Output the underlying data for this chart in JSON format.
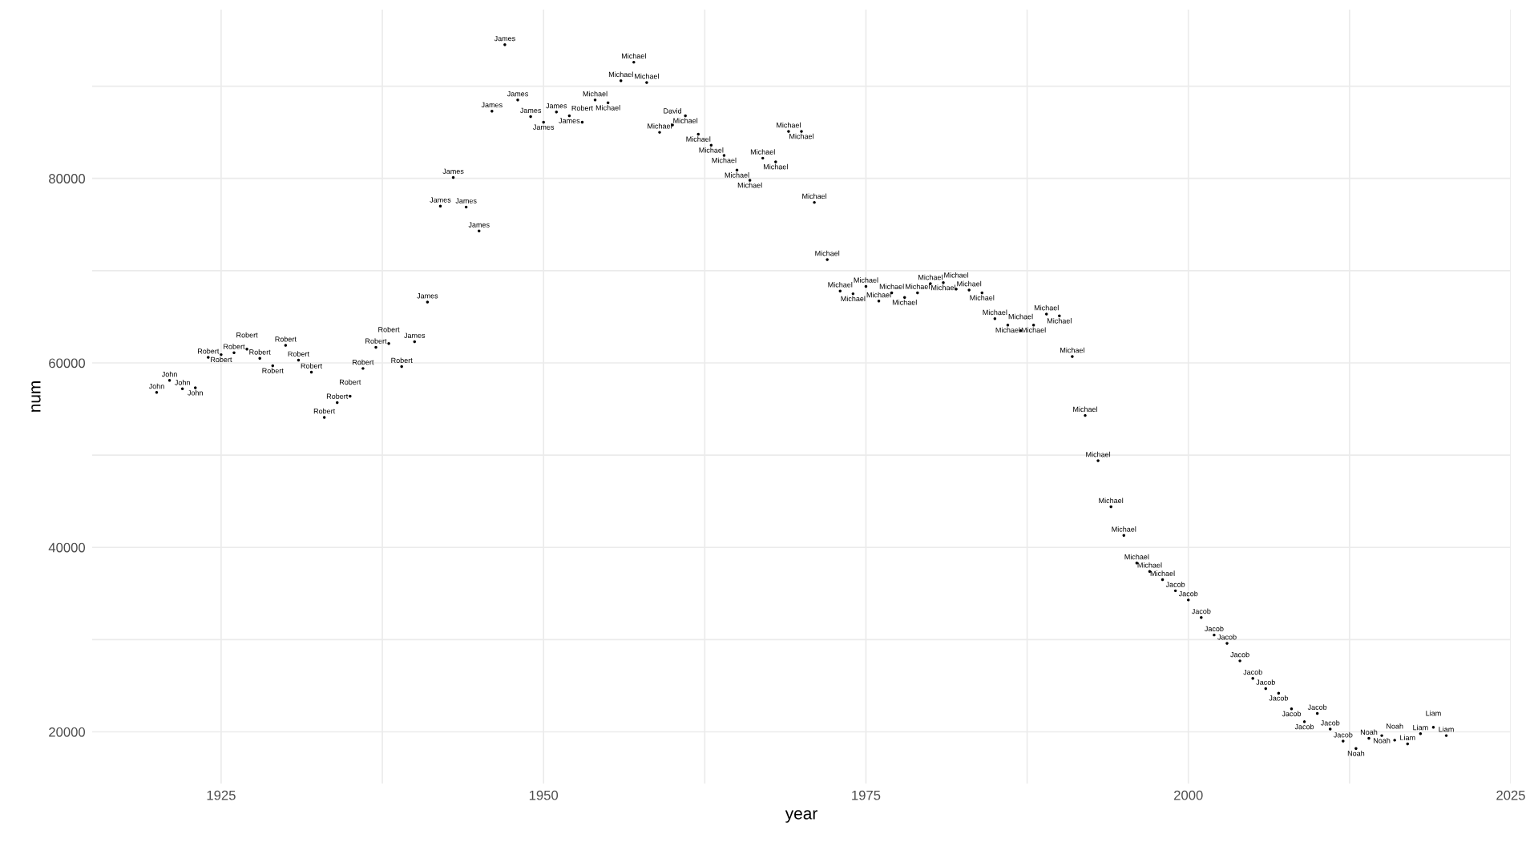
{
  "chart_data": {
    "type": "scatter",
    "xlabel": "year",
    "ylabel": "num",
    "marker": "circle",
    "grid": true,
    "xlim": [
      1915,
      2025
    ],
    "ylim": [
      14400,
      98300
    ],
    "xticks": [
      1925,
      {
        "value": 1937.5,
        "label": null
      },
      1950,
      {
        "value": 1962.5,
        "label": null
      },
      1975,
      {
        "value": 1987.5,
        "label": null
      },
      2000,
      {
        "value": 2012.5,
        "label": null
      },
      2025
    ],
    "yticks": [
      20000,
      {
        "value": 30000,
        "label": null
      },
      40000,
      {
        "value": 50000,
        "label": null
      },
      60000,
      {
        "value": 70000,
        "label": null
      },
      80000,
      {
        "value": 90000,
        "label": null
      }
    ],
    "series": [
      {
        "color": "#000000",
        "x": [
          1920,
          1921,
          1922,
          1923,
          1924,
          1925,
          1926,
          1927,
          1928,
          1929,
          1930,
          1931,
          1932,
          1933,
          1934,
          1935,
          1936,
          1937,
          1938,
          1939,
          1940,
          1941,
          1942,
          1943,
          1944,
          1945,
          1946,
          1947,
          1948,
          1949,
          1950,
          1951,
          1952,
          1953,
          1954,
          1955,
          1956,
          1957,
          1958,
          1959,
          1960,
          1961,
          1962,
          1963,
          1964,
          1965,
          1966,
          1967,
          1968,
          1969,
          1970,
          1971,
          1972,
          1973,
          1974,
          1975,
          1976,
          1977,
          1978,
          1979,
          1980,
          1981,
          1982,
          1983,
          1984,
          1985,
          1986,
          1987,
          1988,
          1989,
          1990,
          1991,
          1992,
          1993,
          1994,
          1995,
          1996,
          1997,
          1998,
          1999,
          2000,
          2001,
          2002,
          2003,
          2004,
          2005,
          2006,
          2007,
          2008,
          2009,
          2010,
          2011,
          2012,
          2013,
          2014,
          2015,
          2016,
          2017,
          2018,
          2019,
          2020
        ],
        "values": [
          56800,
          58100,
          57200,
          57300,
          60600,
          60900,
          61100,
          61500,
          60500,
          59700,
          61900,
          60300,
          59000,
          54100,
          55700,
          56400,
          59400,
          61700,
          62100,
          59600,
          62300,
          66600,
          77000,
          80100,
          76900,
          74300,
          87300,
          94500,
          88500,
          86700,
          86100,
          87200,
          86800,
          86100,
          88500,
          88200,
          90600,
          92600,
          90400,
          85000,
          85800,
          86800,
          84800,
          83600,
          82500,
          80900,
          79800,
          82200,
          81800,
          85100,
          85100,
          77400,
          71200,
          67800,
          67500,
          68300,
          66700,
          67600,
          67100,
          67600,
          68600,
          68700,
          68000,
          67900,
          67600,
          64800,
          64100,
          63500,
          64100,
          65300,
          65100,
          60700,
          54300,
          49400,
          44400,
          41300,
          38300,
          37400,
          36500,
          35300,
          34300,
          32400,
          30500,
          29600,
          27700,
          25800,
          24700,
          24200,
          22500,
          21100,
          22000,
          20300,
          19000,
          18200,
          19300,
          19600,
          19100,
          18700,
          19800,
          20500,
          19600
        ],
        "value_labels": [
          "John",
          "John",
          "John",
          "John",
          "Robert",
          "Robert",
          "Robert",
          "Robert",
          "Robert",
          "Robert",
          "Robert",
          "Robert",
          "Robert",
          "Robert",
          "Robert",
          "Robert",
          "Robert",
          "Robert",
          "Robert",
          "Robert",
          "James",
          "James",
          "James",
          "James",
          "James",
          "James",
          "James",
          "James",
          "James",
          "James",
          "James",
          "James",
          "James",
          "Robert",
          "Michael",
          "Michael",
          "Michael",
          "Michael",
          "Michael",
          "Michael",
          "David",
          "Michael",
          "Michael",
          "Michael",
          "Michael",
          "Michael",
          "Michael",
          "Michael",
          "Michael",
          "Michael",
          "Michael",
          "Michael",
          "Michael",
          "Michael",
          "Michael",
          "Michael",
          "Michael",
          "Michael",
          "Michael",
          "Michael",
          "Michael",
          "Michael",
          "Michael",
          "Michael",
          "Michael",
          "Michael",
          "Michael",
          "Michael",
          "Michael",
          "Michael",
          "Michael",
          "Michael",
          "Michael",
          "Michael",
          "Michael",
          "Michael",
          "Michael",
          "Michael",
          "Michael",
          "Jacob",
          "Jacob",
          "Jacob",
          "Jacob",
          "Jacob",
          "Jacob",
          "Jacob",
          "Jacob",
          "Jacob",
          "Jacob",
          "Jacob",
          "Jacob",
          "Jacob",
          "Jacob",
          "Noah",
          "Noah",
          "Noah",
          "Noah",
          "Liam",
          "Liam",
          "Liam",
          "Liam"
        ]
      }
    ]
  }
}
